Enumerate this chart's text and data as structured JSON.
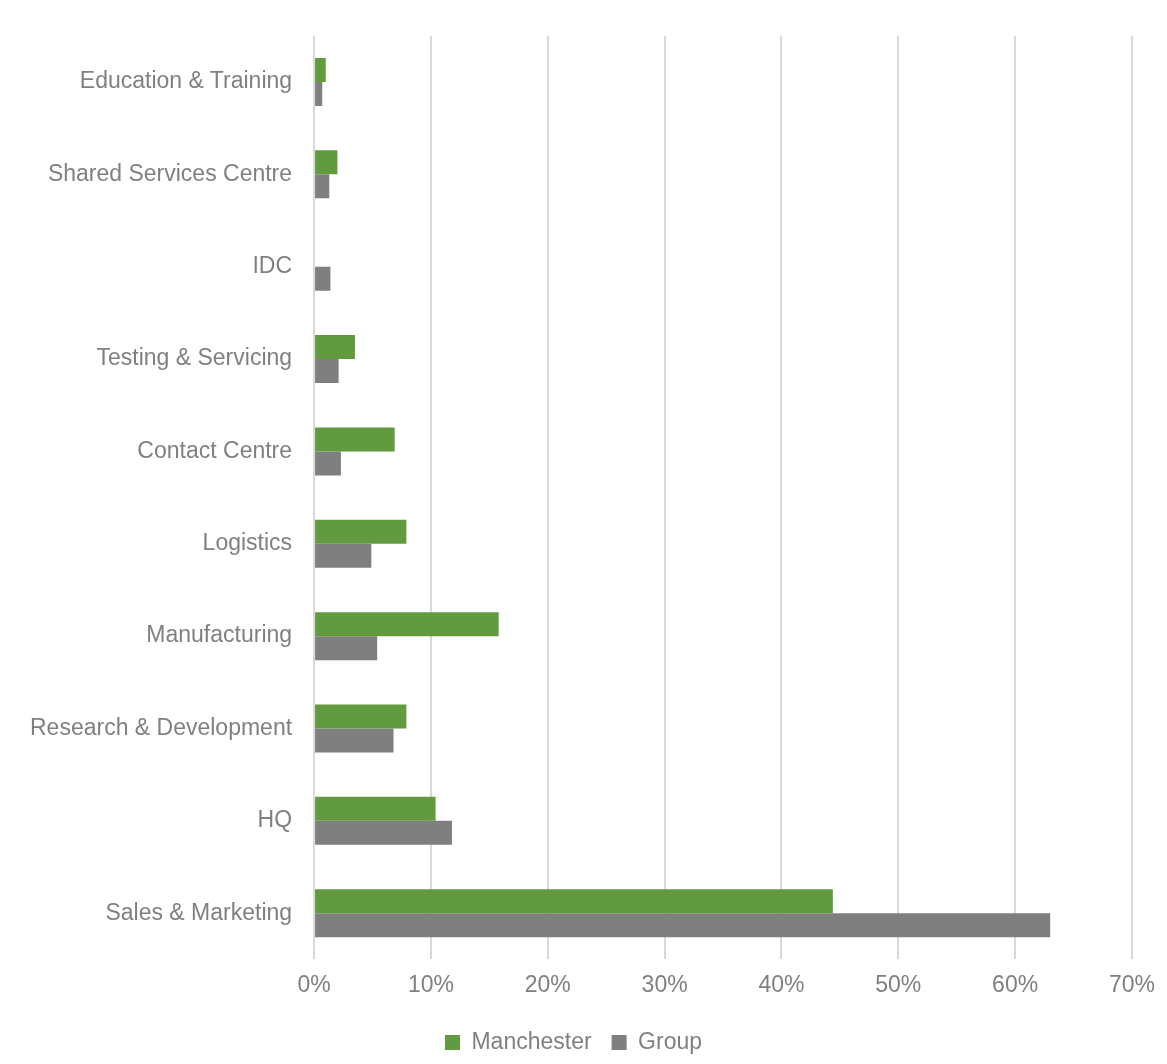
{
  "chart_data": {
    "type": "bar",
    "orientation": "horizontal",
    "categories": [
      "Education & Training",
      "Shared Services Centre",
      "IDC",
      "Testing & Servicing",
      "Contact Centre",
      "Logistics",
      "Manufacturing",
      "Research & Development",
      "HQ",
      "Sales & Marketing"
    ],
    "series": [
      {
        "name": "Manchester",
        "color": "#629a3f",
        "values": [
          1.0,
          2.0,
          0,
          3.5,
          6.9,
          7.9,
          15.8,
          7.9,
          10.4,
          44.4
        ]
      },
      {
        "name": "Group",
        "color": "#7f7f7f",
        "values": [
          0.7,
          1.3,
          1.4,
          2.1,
          2.3,
          4.9,
          5.4,
          6.8,
          11.8,
          63.0
        ]
      }
    ],
    "xlim": [
      0,
      70
    ],
    "xticks": [
      {
        "value": 0,
        "label": "0%"
      },
      {
        "value": 10,
        "label": "10%"
      },
      {
        "value": 20,
        "label": "20%"
      },
      {
        "value": 30,
        "label": "30%"
      },
      {
        "value": 40,
        "label": "40%"
      },
      {
        "value": 50,
        "label": "50%"
      },
      {
        "value": 60,
        "label": "60%"
      },
      {
        "value": 70,
        "label": "70%"
      }
    ],
    "grid": "x",
    "legend": "bottom"
  }
}
